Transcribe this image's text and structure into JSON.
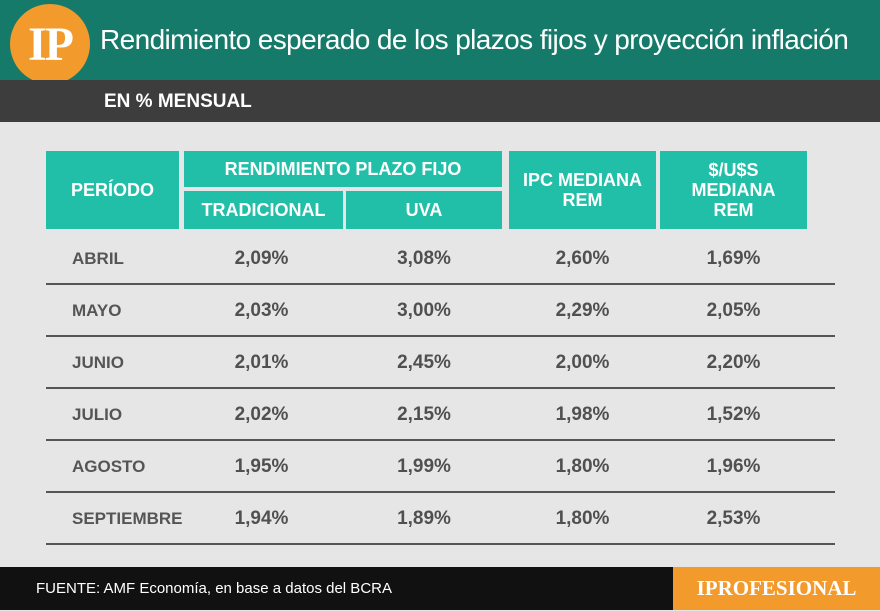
{
  "header": {
    "logo": "IP",
    "title": "Rendimiento esperado de los plazos fijos y proyección inflación",
    "subtitle": "EN % MENSUAL"
  },
  "table": {
    "headers": {
      "period": "PERÍODO",
      "rendimiento": "RENDIMIENTO PLAZO FIJO",
      "tradicional": "TRADICIONAL",
      "uva": "UVA",
      "ipc": "IPC MEDIANA REM",
      "usd": "$/U$S MEDIANA REM"
    },
    "rows": [
      {
        "period": "ABRIL",
        "tradicional": "2,09%",
        "uva": "3,08%",
        "ipc": "2,60%",
        "usd": "1,69%"
      },
      {
        "period": "MAYO",
        "tradicional": "2,03%",
        "uva": "3,00%",
        "ipc": "2,29%",
        "usd": "2,05%"
      },
      {
        "period": "JUNIO",
        "tradicional": "2,01%",
        "uva": "2,45%",
        "ipc": "2,00%",
        "usd": "2,20%"
      },
      {
        "period": "JULIO",
        "tradicional": "2,02%",
        "uva": "2,15%",
        "ipc": "1,98%",
        "usd": "1,52%"
      },
      {
        "period": "AGOSTO",
        "tradicional": "1,95%",
        "uva": "1,99%",
        "ipc": "1,80%",
        "usd": "1,96%"
      },
      {
        "period": "SEPTIEMBRE",
        "tradicional": "1,94%",
        "uva": "1,89%",
        "ipc": "1,80%",
        "usd": "2,53%"
      }
    ]
  },
  "footer": {
    "source": "FUENTE: AMF Economía, en base a datos del BCRA",
    "brand": "IPROFESIONAL"
  },
  "colors": {
    "header_bg": "#157a6a",
    "subheader_bg": "#3d3d3d",
    "table_header_bg": "#22bfa8",
    "logo_orange": "#f39a2c",
    "body_bg": "#e6e6e6",
    "footer_bg": "#111111"
  }
}
